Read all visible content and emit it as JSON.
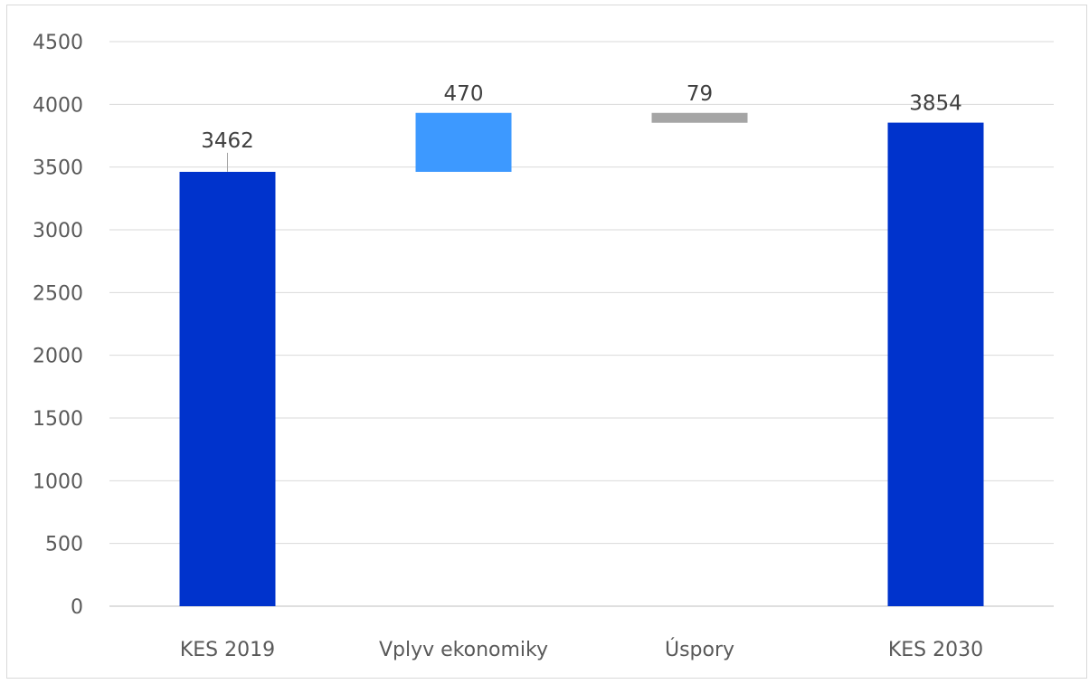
{
  "chart_data": {
    "type": "bar",
    "subtype": "waterfall",
    "title": "",
    "xlabel": "",
    "ylabel": "",
    "ylim": [
      0,
      4500
    ],
    "yticks": [
      0,
      500,
      1000,
      1500,
      2000,
      2500,
      3000,
      3500,
      4000,
      4500
    ],
    "grid": true,
    "legend": "none",
    "categories": [
      "KES 2019",
      "Vplyv ekonomiky",
      "Úspory",
      "KES 2030"
    ],
    "bars": [
      {
        "category": "KES 2019",
        "kind": "total",
        "start": 0,
        "end": 3462,
        "label": "3462",
        "color": "#0033cc"
      },
      {
        "category": "Vplyv ekonomiky",
        "kind": "increase",
        "start": 3462,
        "end": 3932,
        "label": "470",
        "color": "#3d99ff"
      },
      {
        "category": "Úspory",
        "kind": "decrease",
        "start": 3932,
        "end": 3853,
        "label": "79",
        "color": "#a5a5a5"
      },
      {
        "category": "KES 2030",
        "kind": "total",
        "start": 0,
        "end": 3854,
        "label": "3854",
        "color": "#0033cc"
      }
    ]
  }
}
